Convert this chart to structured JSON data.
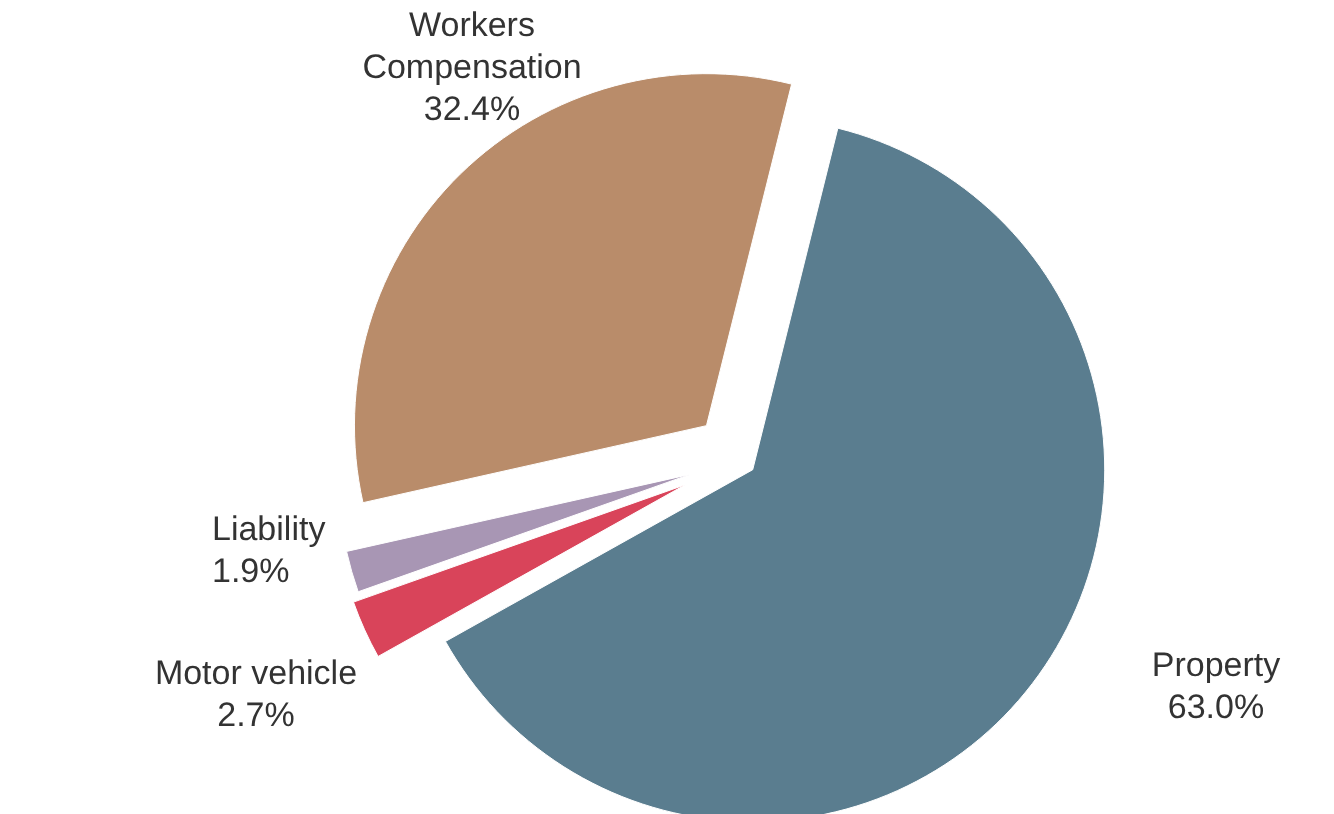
{
  "chart_data": {
    "type": "pie",
    "categories": [
      "Property",
      "Motor vehicle",
      "Liability",
      "Workers Compensation"
    ],
    "values": [
      63.0,
      2.7,
      1.9,
      32.4
    ],
    "colors": [
      "#5a7d8f",
      "#d9445a",
      "#a896b4",
      "#b98c6a"
    ],
    "value_labels": [
      "63.0%",
      "2.7%",
      "1.9%",
      "32.4%"
    ]
  }
}
